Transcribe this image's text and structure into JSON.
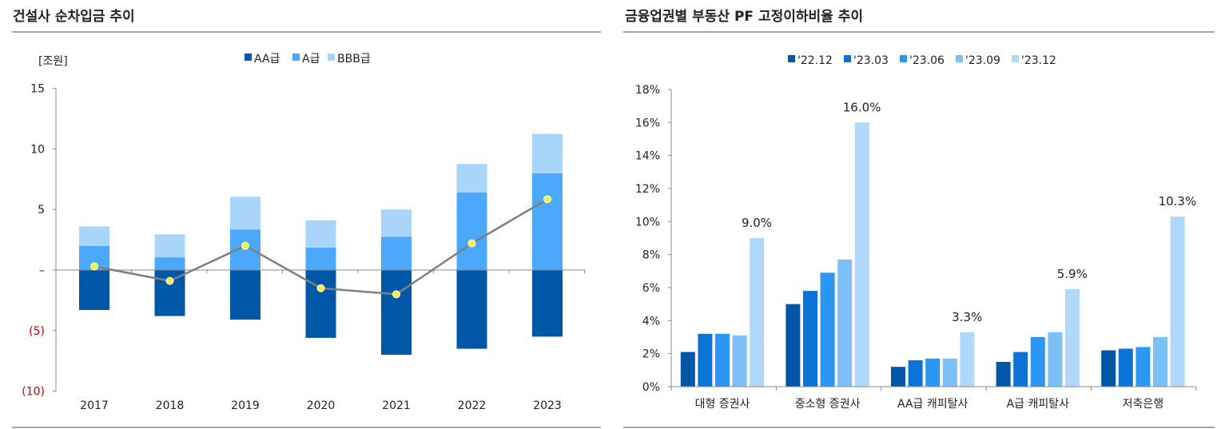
{
  "chart_data": [
    {
      "type": "bar",
      "stacked": true,
      "title": "건설사 순차입금 추이",
      "ylabel": "[조원]",
      "categories": [
        "2017",
        "2018",
        "2019",
        "2020",
        "2021",
        "2022",
        "2023"
      ],
      "ylim": [
        -10,
        15
      ],
      "yticks": [
        15,
        10,
        5,
        0,
        -5,
        -10
      ],
      "ytick_labels": [
        "15",
        "10",
        "5",
        "–",
        "(5)",
        "(10)"
      ],
      "legend_position": "top",
      "grid": false,
      "series": [
        {
          "name": "AA급",
          "color": "#0057A8",
          "values": [
            -3.3,
            -3.8,
            -4.1,
            -5.6,
            -7.0,
            -6.5,
            -5.5
          ]
        },
        {
          "name": "A급",
          "color": "#4BA8FA",
          "values": [
            2.0,
            1.05,
            3.35,
            1.85,
            2.75,
            6.4,
            8.0
          ]
        },
        {
          "name": "BBB급",
          "color": "#A9D5FB",
          "values": [
            1.6,
            1.9,
            2.7,
            2.25,
            2.25,
            2.35,
            3.25
          ]
        }
      ],
      "line": {
        "type": "line",
        "color": "#7F7F7F",
        "marker_color": "#F5F03C",
        "values": [
          0.3,
          -0.9,
          2.0,
          -1.5,
          -2.0,
          2.2,
          5.85
        ]
      }
    },
    {
      "type": "bar",
      "title": "금융업권별 부동산 PF 고정이하비율 추이",
      "categories": [
        "대형 증권사",
        "중소형 증권사",
        "AA급 캐피탈사",
        "A급 캐피탈사",
        "저축은행"
      ],
      "ylim": [
        0,
        18
      ],
      "yticks": [
        0,
        2,
        4,
        6,
        8,
        10,
        12,
        14,
        16,
        18
      ],
      "ytick_labels": [
        "0%",
        "2%",
        "4%",
        "6%",
        "8%",
        "10%",
        "12%",
        "14%",
        "16%",
        "18%"
      ],
      "legend_position": "top",
      "grid": false,
      "series": [
        {
          "name": "'22.12",
          "color": "#0057A8",
          "values": [
            2.1,
            5.0,
            1.2,
            1.5,
            2.2
          ]
        },
        {
          "name": "'23.03",
          "color": "#0A74D6",
          "values": [
            3.2,
            5.8,
            1.6,
            2.1,
            2.3
          ]
        },
        {
          "name": "'23.06",
          "color": "#2B97F2",
          "values": [
            3.2,
            6.9,
            1.7,
            3.0,
            2.4
          ]
        },
        {
          "name": "'23.09",
          "color": "#7DBFF7",
          "values": [
            3.1,
            7.7,
            1.7,
            3.3,
            3.0
          ]
        },
        {
          "name": "'23.12",
          "color": "#B0D8FB",
          "values": [
            9.0,
            16.0,
            3.3,
            5.9,
            10.3
          ]
        }
      ],
      "data_labels": [
        "9.0%",
        "16.0%",
        "3.3%",
        "5.9%",
        "10.3%"
      ]
    }
  ]
}
